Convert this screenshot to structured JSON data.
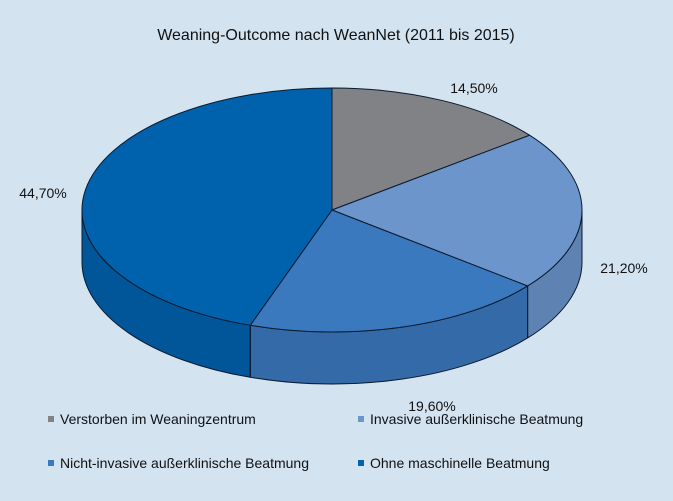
{
  "chart_data": {
    "type": "pie",
    "title": "Weaning-Outcome nach WeanNet (2011 bis 2015)",
    "three_d": true,
    "legend_position": "bottom",
    "slices": [
      {
        "label": "Verstorben im Weaningzentrum",
        "value": 14.5,
        "value_label": "14,50%",
        "color": "#808285"
      },
      {
        "label": "Invasive außerklinische Beatmung",
        "value": 21.2,
        "value_label": "21,20%",
        "color": "#6b95cb"
      },
      {
        "label": "Nicht-invasive außerklinische Beatmung",
        "value": 19.6,
        "value_label": "19,60%",
        "color": "#3b79be"
      },
      {
        "label": "Ohne maschinelle Beatmung",
        "value": 44.7,
        "value_label": "44,70%",
        "color": "#0062ad"
      }
    ]
  }
}
